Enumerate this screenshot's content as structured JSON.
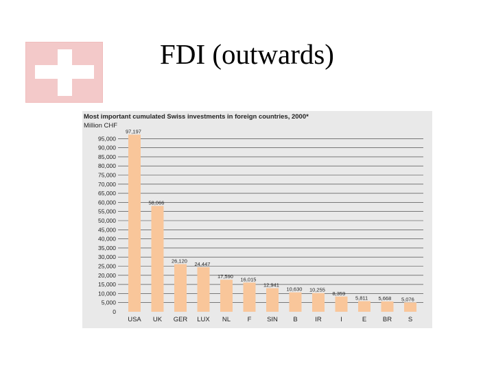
{
  "slide": {
    "title": "FDI (outwards)"
  },
  "colors": {
    "flag_background": "#f3c9c9",
    "bar_fill": "#f9c69a",
    "panel_background": "#e9e9e9",
    "gridline": "#333333"
  },
  "chart_data": {
    "type": "bar",
    "title": "Most important cumulated Swiss investments in foreign countries, 2000*",
    "ylabel": "Million CHF",
    "xlabel": "",
    "categories": [
      "USA",
      "UK",
      "GER",
      "LUX",
      "NL",
      "F",
      "SIN",
      "B",
      "IR",
      "I",
      "E",
      "BR",
      "S"
    ],
    "values": [
      97197,
      58066,
      26120,
      24447,
      17590,
      16015,
      12941,
      10630,
      10255,
      8359,
      5811,
      5668,
      5076
    ],
    "value_labels": [
      "97,197",
      "58,066",
      "26,120",
      "24,447",
      "17,590",
      "16,015",
      "12,941",
      "10,630",
      "10,255",
      "8,359",
      "5,811",
      "5,668",
      "5,076"
    ],
    "ylim": [
      0,
      100000
    ],
    "yticks": [
      0,
      5000,
      10000,
      15000,
      20000,
      25000,
      30000,
      35000,
      40000,
      45000,
      50000,
      55000,
      60000,
      65000,
      70000,
      75000,
      80000,
      85000,
      90000,
      95000
    ],
    "ytick_labels": [
      "0",
      "5,000",
      "10,000",
      "15,000",
      "20,000",
      "25,000",
      "30,000",
      "35,000",
      "40,000",
      "45,000",
      "50,000",
      "55,000",
      "60,000",
      "65,000",
      "70,000",
      "75,000",
      "80,000",
      "85,000",
      "90,000",
      "95,000"
    ],
    "grid": true,
    "legend": "none"
  }
}
